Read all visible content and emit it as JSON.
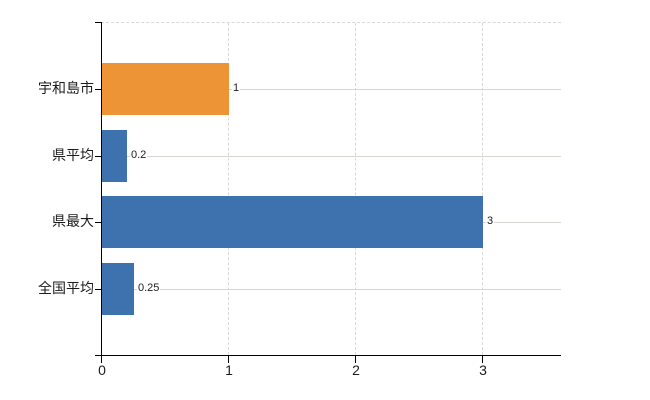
{
  "chart_data": {
    "type": "bar",
    "orientation": "horizontal",
    "title": "",
    "xlabel": "",
    "ylabel": "",
    "categories": [
      "宇和島市",
      "県平均",
      "県最大",
      "全国平均"
    ],
    "values": [
      1,
      0.2,
      3,
      0.25
    ],
    "value_labels": [
      "1",
      "0.2",
      "3",
      "0.25"
    ],
    "bar_colors": [
      "#ed9436",
      "#3e72ae",
      "#3e72ae",
      "#3e72ae"
    ],
    "xlim": [
      0,
      3.61
    ],
    "xticks": [
      0,
      1,
      2,
      3
    ],
    "xtick_labels": [
      "0",
      "1",
      "2",
      "3"
    ],
    "grid": {
      "vertical_lines": "dashed",
      "horizontal_category_lines": "solid",
      "top_border": "dashed",
      "legend": "none"
    },
    "colors": {
      "axis": "#000000",
      "horizontal_gridline": "#d3d8d0",
      "vertical_gridline": "#d8d8d8",
      "text": "#1c1c1c",
      "background": "#ffffff"
    }
  }
}
